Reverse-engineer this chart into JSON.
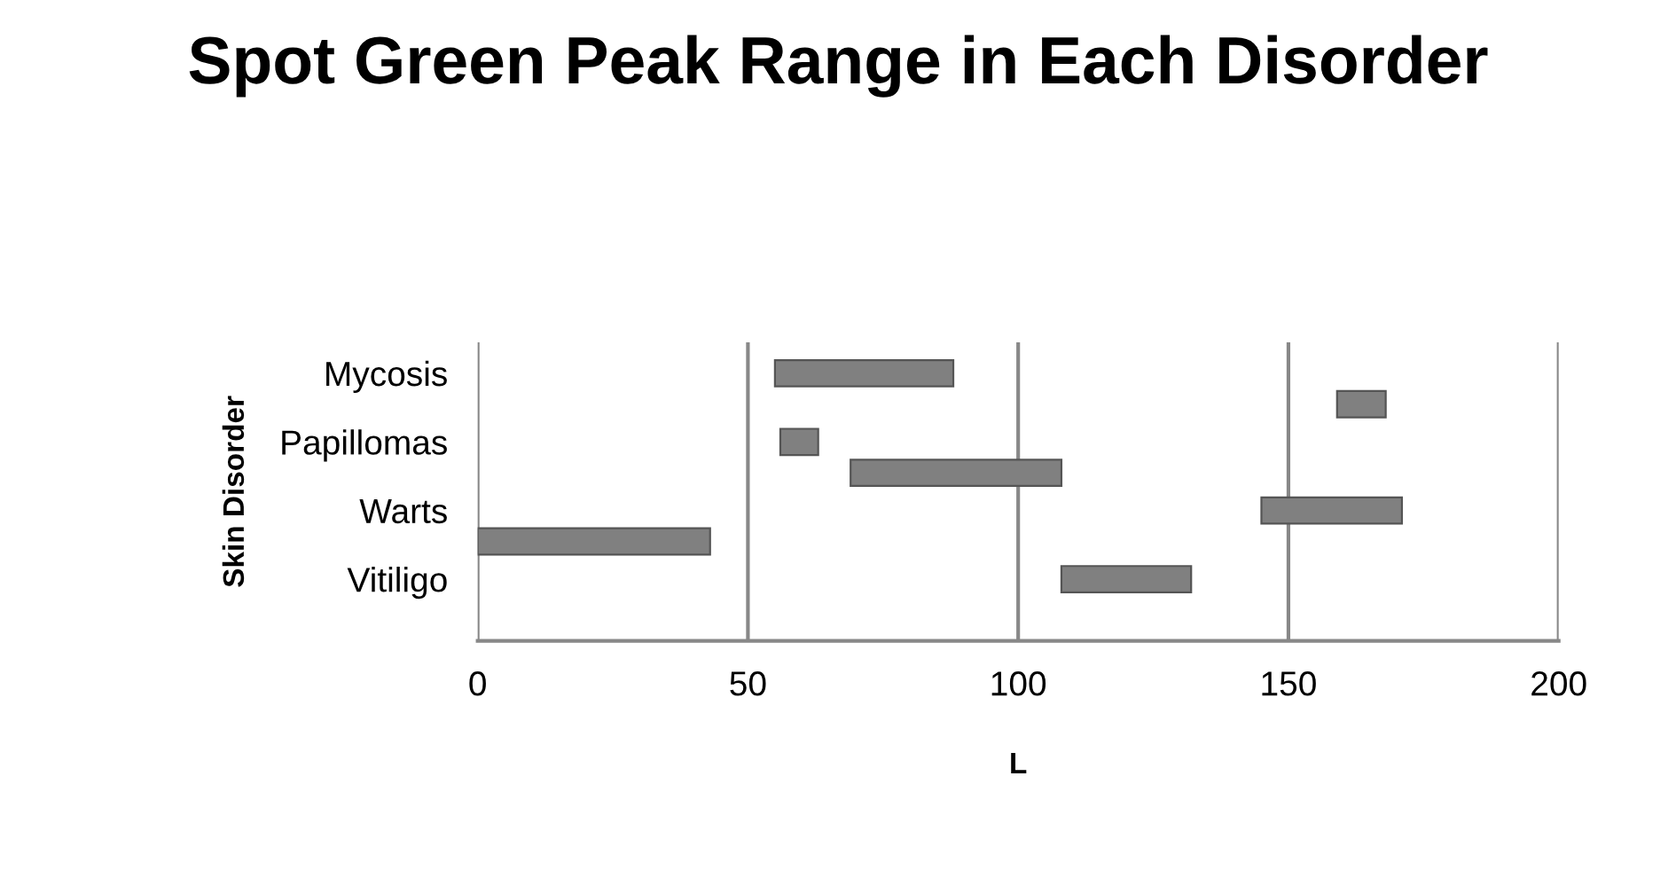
{
  "chart_data": {
    "type": "bar",
    "orientation": "horizontal",
    "title": "Spot Green Peak Range in Each Disorder",
    "xlabel": "L",
    "ylabel": "Skin Disorder",
    "categories": [
      "Mycosis",
      "Papillomas",
      "Warts",
      "Vitiligo"
    ],
    "series": [
      {
        "color": "#808080",
        "base": [
          55,
          56,
          145,
          108
        ],
        "values": [
          33,
          7,
          26,
          24
        ]
      },
      {
        "color": "#808080",
        "base": [
          159,
          69,
          0,
          null
        ],
        "values": [
          9,
          39,
          43,
          null
        ]
      }
    ],
    "xlim": [
      0,
      200
    ],
    "xticks": [
      0,
      50,
      100,
      150,
      200
    ],
    "grid": "x",
    "legend": false
  }
}
